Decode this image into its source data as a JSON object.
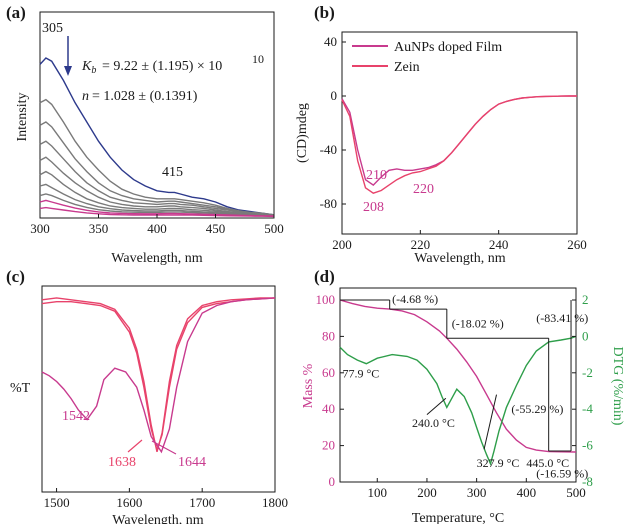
{
  "chart_data": [
    {
      "panel": "(a)",
      "type": "line",
      "xlabel": "Wavelength, nm",
      "ylabel": "Intensity",
      "xlim": [
        300,
        500
      ],
      "xticks": [
        "300",
        "350",
        "400",
        "450",
        "500"
      ],
      "annotations": {
        "peak1": "305",
        "peak2": "415",
        "kb": "K_b = 9.22 ± (1.195) × 10^10",
        "kb_main": "= 9.22 ± (1.195) × 10",
        "kb_exp": "10",
        "n": "n = 1.028 ± (0.1391)",
        "n_main": "= 1.028 ± (0.1391)"
      },
      "series": [
        {
          "color": "#2d3a8c",
          "x": [
            300,
            305,
            310,
            320,
            330,
            340,
            350,
            360,
            370,
            380,
            390,
            400,
            410,
            415,
            420,
            430,
            440,
            450,
            460,
            470,
            480,
            490,
            500
          ],
          "y": [
            0.96,
            1.0,
            0.98,
            0.86,
            0.72,
            0.6,
            0.48,
            0.38,
            0.3,
            0.24,
            0.2,
            0.17,
            0.16,
            0.16,
            0.15,
            0.13,
            0.12,
            0.1,
            0.07,
            0.05,
            0.04,
            0.03,
            0.02
          ]
        },
        {
          "color": "#7a7a7a",
          "x": [
            300,
            305,
            310,
            320,
            330,
            340,
            350,
            360,
            370,
            380,
            390,
            400,
            410,
            415,
            420,
            430,
            440,
            450,
            460,
            470,
            480,
            490,
            500
          ],
          "y": [
            0.72,
            0.74,
            0.71,
            0.6,
            0.48,
            0.38,
            0.3,
            0.23,
            0.18,
            0.15,
            0.13,
            0.12,
            0.12,
            0.12,
            0.115,
            0.105,
            0.095,
            0.08,
            0.06,
            0.045,
            0.035,
            0.03,
            0.02
          ]
        },
        {
          "color": "#7a7a7a",
          "x": [
            300,
            305,
            310,
            320,
            330,
            340,
            350,
            360,
            370,
            380,
            390,
            400,
            410,
            415,
            420,
            430,
            440,
            450,
            460,
            470,
            480,
            490,
            500
          ],
          "y": [
            0.58,
            0.6,
            0.57,
            0.47,
            0.37,
            0.29,
            0.22,
            0.17,
            0.14,
            0.12,
            0.11,
            0.1,
            0.105,
            0.105,
            0.1,
            0.09,
            0.08,
            0.07,
            0.055,
            0.04,
            0.03,
            0.025,
            0.02
          ]
        },
        {
          "color": "#7a7a7a",
          "x": [
            300,
            305,
            310,
            320,
            330,
            340,
            350,
            360,
            370,
            380,
            390,
            400,
            410,
            415,
            420,
            430,
            440,
            450,
            460,
            470,
            480,
            490,
            500
          ],
          "y": [
            0.46,
            0.48,
            0.45,
            0.37,
            0.29,
            0.22,
            0.17,
            0.13,
            0.11,
            0.095,
            0.09,
            0.085,
            0.09,
            0.09,
            0.085,
            0.08,
            0.07,
            0.06,
            0.05,
            0.04,
            0.03,
            0.025,
            0.02
          ]
        },
        {
          "color": "#7a7a7a",
          "x": [
            300,
            305,
            310,
            320,
            330,
            340,
            350,
            360,
            370,
            380,
            390,
            400,
            410,
            415,
            420,
            430,
            440,
            450,
            460,
            470,
            480,
            490,
            500
          ],
          "y": [
            0.36,
            0.38,
            0.35,
            0.28,
            0.22,
            0.17,
            0.13,
            0.1,
            0.085,
            0.075,
            0.07,
            0.07,
            0.075,
            0.075,
            0.07,
            0.065,
            0.06,
            0.05,
            0.04,
            0.035,
            0.03,
            0.025,
            0.02
          ]
        },
        {
          "color": "#7a7a7a",
          "x": [
            300,
            305,
            310,
            320,
            330,
            340,
            350,
            360,
            370,
            380,
            390,
            400,
            410,
            415,
            420,
            430,
            440,
            450,
            460,
            470,
            480,
            490,
            500
          ],
          "y": [
            0.27,
            0.29,
            0.27,
            0.21,
            0.16,
            0.12,
            0.095,
            0.075,
            0.065,
            0.06,
            0.055,
            0.055,
            0.06,
            0.06,
            0.058,
            0.052,
            0.048,
            0.042,
            0.035,
            0.03,
            0.025,
            0.02,
            0.02
          ]
        },
        {
          "color": "#7a7a7a",
          "x": [
            300,
            305,
            310,
            320,
            330,
            340,
            350,
            360,
            370,
            380,
            390,
            400,
            410,
            415,
            420,
            430,
            440,
            450,
            460,
            470,
            480,
            490,
            500
          ],
          "y": [
            0.2,
            0.21,
            0.19,
            0.15,
            0.115,
            0.09,
            0.07,
            0.058,
            0.05,
            0.046,
            0.044,
            0.044,
            0.048,
            0.048,
            0.046,
            0.042,
            0.038,
            0.034,
            0.03,
            0.026,
            0.022,
            0.02,
            0.018
          ]
        },
        {
          "color": "#7a7a7a",
          "x": [
            300,
            305,
            310,
            320,
            330,
            340,
            350,
            360,
            370,
            380,
            390,
            400,
            410,
            415,
            420,
            430,
            440,
            450,
            460,
            470,
            480,
            490,
            500
          ],
          "y": [
            0.14,
            0.15,
            0.14,
            0.11,
            0.085,
            0.066,
            0.052,
            0.044,
            0.039,
            0.036,
            0.035,
            0.035,
            0.038,
            0.038,
            0.037,
            0.034,
            0.031,
            0.028,
            0.025,
            0.022,
            0.019,
            0.017,
            0.016
          ]
        },
        {
          "color": "#c83a8e",
          "x": [
            300,
            305,
            310,
            320,
            330,
            340,
            350,
            360,
            370,
            380,
            390,
            400,
            410,
            415,
            420,
            430,
            440,
            450,
            460,
            470,
            480,
            490,
            500
          ],
          "y": [
            0.1,
            0.11,
            0.1,
            0.08,
            0.062,
            0.048,
            0.038,
            0.032,
            0.029,
            0.027,
            0.026,
            0.026,
            0.028,
            0.028,
            0.027,
            0.025,
            0.023,
            0.021,
            0.019,
            0.017,
            0.015,
            0.014,
            0.013
          ]
        },
        {
          "color": "#c83a8e",
          "x": [
            300,
            305,
            310,
            320,
            330,
            340,
            350,
            360,
            370,
            380,
            390,
            400,
            410,
            415,
            420,
            430,
            440,
            450,
            460,
            470,
            480,
            490,
            500
          ],
          "y": [
            0.06,
            0.065,
            0.06,
            0.05,
            0.04,
            0.032,
            0.026,
            0.022,
            0.02,
            0.019,
            0.018,
            0.018,
            0.019,
            0.019,
            0.019,
            0.018,
            0.017,
            0.015,
            0.014,
            0.013,
            0.012,
            0.011,
            0.01
          ]
        }
      ]
    },
    {
      "panel": "(b)",
      "type": "line",
      "xlabel": "Wavelength, nm",
      "ylabel": "(CD)mdeg",
      "xlim": [
        200,
        260
      ],
      "ylim": [
        -90,
        45
      ],
      "xticks": [
        "200",
        "220",
        "240",
        "260"
      ],
      "yticks": [
        "40",
        "0",
        "-40",
        "-80"
      ],
      "legend_position": "top-left",
      "annotations": {
        "p208": "208",
        "p210": "210",
        "p220": "220"
      },
      "series": [
        {
          "name": "AuNPs doped Film",
          "color": "#c83a8e",
          "x": [
            200,
            202,
            204,
            206,
            208,
            210,
            212,
            214,
            216,
            218,
            220,
            222,
            224,
            226,
            228,
            230,
            232,
            234,
            236,
            238,
            240,
            242,
            244,
            246,
            248,
            250,
            252,
            254,
            256,
            258,
            260
          ],
          "y": [
            -2,
            -12,
            -40,
            -62,
            -66,
            -60,
            -55,
            -54,
            -55,
            -55,
            -54,
            -53,
            -51,
            -48,
            -42,
            -35,
            -28,
            -21,
            -15,
            -10,
            -6,
            -4,
            -2.5,
            -1.5,
            -1,
            -0.5,
            -0.3,
            -0.2,
            -0.1,
            0,
            0
          ]
        },
        {
          "name": "Zein",
          "color": "#e8436b",
          "x": [
            200,
            202,
            204,
            206,
            208,
            210,
            212,
            214,
            216,
            218,
            220,
            222,
            224,
            226,
            228,
            230,
            232,
            234,
            236,
            238,
            240,
            242,
            244,
            246,
            248,
            250,
            252,
            254,
            256,
            258,
            260
          ],
          "y": [
            -3,
            -15,
            -48,
            -68,
            -72,
            -70,
            -66,
            -62,
            -59,
            -57,
            -56,
            -54,
            -52,
            -48,
            -42,
            -35,
            -28,
            -21,
            -15,
            -10,
            -6,
            -4,
            -2.5,
            -1.5,
            -1,
            -0.5,
            -0.3,
            -0.2,
            -0.1,
            0,
            0
          ]
        }
      ]
    },
    {
      "panel": "(c)",
      "type": "line",
      "xlabel": "Wavelength, nm",
      "ylabel": "%T",
      "xlim": [
        1480,
        1800
      ],
      "xticks": [
        "1500",
        "1600",
        "1700",
        "1800"
      ],
      "annotations": {
        "p1542": "1542",
        "p1638": "1638",
        "p1644": "1644"
      },
      "series": [
        {
          "color": "#e8436b",
          "x": [
            1480,
            1500,
            1520,
            1540,
            1560,
            1580,
            1600,
            1610,
            1620,
            1630,
            1638,
            1645,
            1655,
            1665,
            1680,
            1700,
            1720,
            1740,
            1760,
            1780,
            1800
          ],
          "y": [
            0.98,
            0.99,
            0.98,
            0.97,
            0.96,
            0.93,
            0.83,
            0.72,
            0.55,
            0.32,
            0.18,
            0.28,
            0.55,
            0.74,
            0.88,
            0.95,
            0.97,
            0.98,
            0.985,
            0.99,
            0.99
          ]
        },
        {
          "color": "#e8436b",
          "x": [
            1480,
            1500,
            1520,
            1540,
            1560,
            1580,
            1600,
            1610,
            1620,
            1630,
            1638,
            1645,
            1655,
            1665,
            1680,
            1700,
            1720,
            1740,
            1760,
            1780,
            1800
          ],
          "y": [
            0.96,
            0.97,
            0.97,
            0.96,
            0.95,
            0.92,
            0.81,
            0.7,
            0.52,
            0.3,
            0.19,
            0.27,
            0.52,
            0.72,
            0.86,
            0.94,
            0.96,
            0.97,
            0.98,
            0.985,
            0.99
          ]
        },
        {
          "color": "#c83a8e",
          "x": [
            1480,
            1490,
            1500,
            1510,
            1520,
            1530,
            1542,
            1555,
            1565,
            1580,
            1595,
            1610,
            1620,
            1630,
            1644,
            1655,
            1665,
            1680,
            1700,
            1720,
            1740,
            1760,
            1780,
            1800
          ],
          "y": [
            0.6,
            0.58,
            0.55,
            0.51,
            0.46,
            0.4,
            0.35,
            0.42,
            0.56,
            0.62,
            0.6,
            0.52,
            0.4,
            0.26,
            0.18,
            0.3,
            0.52,
            0.76,
            0.91,
            0.95,
            0.97,
            0.98,
            0.985,
            0.99
          ]
        }
      ]
    },
    {
      "panel": "(d)",
      "type": "line",
      "xlabel": "Temperature, °C",
      "ylabel": "Mass %",
      "y2label": "DTG (%/min)",
      "xlim": [
        25,
        500
      ],
      "ylim": [
        0,
        100
      ],
      "y2lim": [
        -8,
        2
      ],
      "xticks": [
        "100",
        "200",
        "300",
        "400",
        "500"
      ],
      "yticks": [
        "100",
        "80",
        "60",
        "40",
        "20",
        "0"
      ],
      "y2ticks": [
        "2",
        "0",
        "-2",
        "-4",
        "-6",
        "-8"
      ],
      "annotations": {
        "t1": "77.9 °C",
        "t2": "240.0 °C",
        "t3": "327.9 °C",
        "t4": "445.0 °C",
        "m1": "(-4.68 %)",
        "m2": "(-18.02 %)",
        "m3": "(-55.29 %)",
        "m4": "(-16.59 %)",
        "m5": "(-83.41 %)"
      },
      "series": [
        {
          "name": "Mass %",
          "color": "#c83a8e",
          "x": [
            25,
            50,
            75,
            100,
            125,
            150,
            175,
            200,
            225,
            240,
            260,
            280,
            300,
            320,
            340,
            360,
            380,
            400,
            420,
            445,
            470,
            500
          ],
          "y": [
            100,
            98,
            96.5,
            95.5,
            95,
            94,
            92,
            88,
            83,
            79,
            73,
            66,
            58,
            48,
            38,
            29,
            23,
            19,
            17.5,
            16.7,
            16.6,
            16.5
          ]
        },
        {
          "name": "DTG",
          "color": "#2e9e4a",
          "x": [
            25,
            40,
            60,
            77.9,
            100,
            130,
            160,
            180,
            200,
            220,
            230,
            240,
            250,
            260,
            275,
            290,
            300,
            310,
            320,
            327.9,
            335,
            345,
            360,
            380,
            400,
            420,
            445,
            470,
            490,
            500
          ],
          "y": [
            -0.6,
            -1.0,
            -1.3,
            -1.5,
            -1.2,
            -1.0,
            -1.1,
            -1.3,
            -1.8,
            -2.6,
            -3.3,
            -3.9,
            -3.4,
            -2.9,
            -3.3,
            -4.2,
            -5.0,
            -5.8,
            -6.5,
            -7.0,
            -6.3,
            -5.2,
            -3.9,
            -2.7,
            -1.6,
            -0.8,
            -0.3,
            -0.2,
            -0.1,
            0.0
          ]
        }
      ]
    }
  ]
}
